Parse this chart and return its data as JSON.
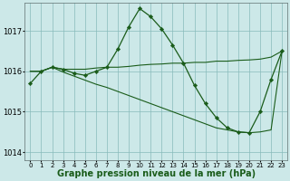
{
  "xlabel": "Graphe pression niveau de la mer (hPa)",
  "xlabel_fontsize": 7,
  "background_color": "#cce8e8",
  "plot_bg_color": "#cce8e8",
  "grid_color": "#88bbbb",
  "line_color": "#1a5c1a",
  "marker_color": "#1a5c1a",
  "ylim": [
    1013.8,
    1017.7
  ],
  "xlim": [
    -0.5,
    23.5
  ],
  "yticks": [
    1014,
    1015,
    1016,
    1017
  ],
  "xticks": [
    0,
    1,
    2,
    3,
    4,
    5,
    6,
    7,
    8,
    9,
    10,
    11,
    12,
    13,
    14,
    15,
    16,
    17,
    18,
    19,
    20,
    21,
    22,
    23
  ],
  "xtick_fontsize": 5,
  "ytick_fontsize": 6,
  "series": [
    {
      "x": [
        0,
        1,
        2,
        3,
        4,
        5,
        6,
        7,
        8,
        9,
        10,
        11,
        12,
        13,
        14,
        15,
        16,
        17,
        18,
        19,
        20,
        21,
        22,
        23
      ],
      "y": [
        1016.0,
        1016.0,
        1016.1,
        1016.05,
        1016.05,
        1016.05,
        1016.08,
        1016.1,
        1016.1,
        1016.12,
        1016.15,
        1016.17,
        1016.18,
        1016.2,
        1016.2,
        1016.22,
        1016.22,
        1016.25,
        1016.25,
        1016.27,
        1016.28,
        1016.3,
        1016.35,
        1016.5
      ],
      "linewidth": 0.8,
      "has_markers": false
    },
    {
      "x": [
        0,
        1,
        2,
        3,
        4,
        5,
        6,
        7,
        8,
        9,
        10,
        11,
        12,
        13,
        14,
        15,
        16,
        17,
        18,
        19,
        20,
        21,
        22,
        23
      ],
      "y": [
        1016.0,
        1016.0,
        1016.1,
        1015.98,
        1015.88,
        1015.78,
        1015.68,
        1015.6,
        1015.5,
        1015.4,
        1015.3,
        1015.2,
        1015.1,
        1015.0,
        1014.9,
        1014.8,
        1014.7,
        1014.6,
        1014.55,
        1014.5,
        1014.48,
        1014.5,
        1014.55,
        1016.5
      ],
      "linewidth": 0.8,
      "has_markers": false
    },
    {
      "x": [
        0,
        1,
        2,
        3,
        4,
        5,
        6,
        7,
        8,
        9,
        10,
        11,
        12,
        13,
        14,
        15,
        16,
        17,
        18,
        19,
        20,
        21,
        22,
        23
      ],
      "y": [
        1015.7,
        1016.0,
        1016.1,
        1016.05,
        1015.95,
        1015.9,
        1016.0,
        1016.1,
        1016.55,
        1017.1,
        1017.55,
        1017.35,
        1017.05,
        1016.65,
        1016.2,
        1015.65,
        1015.2,
        1014.85,
        1014.6,
        1014.5,
        1014.48,
        1015.0,
        1015.8,
        1016.5
      ],
      "linewidth": 0.9,
      "has_markers": true,
      "markersize": 2.2
    }
  ]
}
